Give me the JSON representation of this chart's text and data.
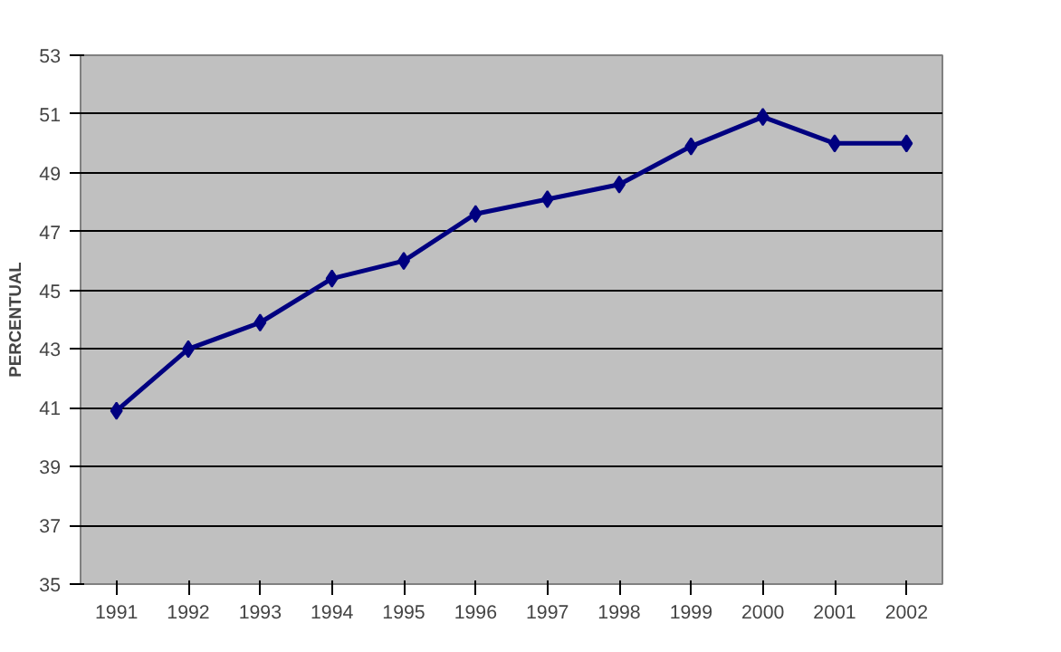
{
  "chart_data": {
    "type": "line",
    "ylabel": "PERCENTUAL",
    "categories": [
      "1991",
      "1992",
      "1993",
      "1994",
      "1995",
      "1996",
      "1997",
      "1998",
      "1999",
      "2000",
      "2001",
      "2002"
    ],
    "series": [
      {
        "color": "#000080",
        "values": [
          40.9,
          43.0,
          43.9,
          45.4,
          46.0,
          47.6,
          48.1,
          48.6,
          49.9,
          50.9,
          50.0,
          50.0
        ]
      }
    ],
    "ylim": [
      35,
      53
    ],
    "yticks": [
      35,
      37,
      39,
      41,
      43,
      45,
      47,
      49,
      51,
      53
    ],
    "grid": "y",
    "marker": "diamond",
    "line_style": "solid"
  }
}
